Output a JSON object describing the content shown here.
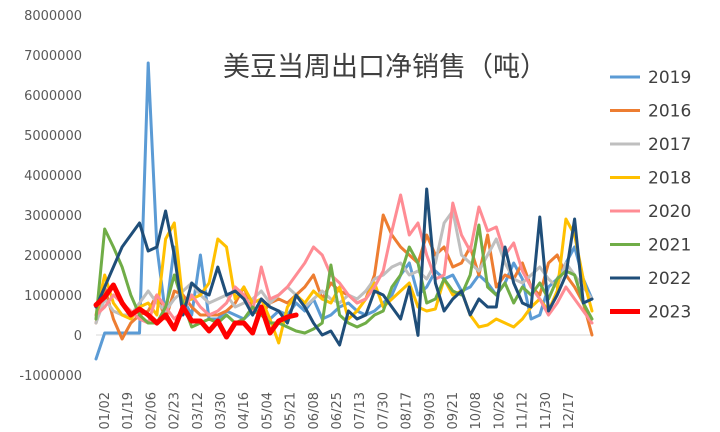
{
  "chart_data": {
    "type": "line",
    "title": "美豆当周出口净销售（吨）",
    "xlabel": "",
    "ylabel": "",
    "ylim": [
      -1000000,
      8000000
    ],
    "y_ticks": [
      "8000000",
      "7000000",
      "6000000",
      "5000000",
      "4000000",
      "3000000",
      "2000000",
      "1000000",
      "0",
      "-1000000"
    ],
    "x_tick_labels": [
      "01/02",
      "01/19",
      "02/06",
      "02/23",
      "03/12",
      "03/30",
      "04/16",
      "05/04",
      "05/21",
      "06/08",
      "06/25",
      "07/13",
      "07/30",
      "08/17",
      "09/03",
      "09/21",
      "10/08",
      "10/26",
      "11/12",
      "11/30",
      "12/17"
    ],
    "grid": false,
    "legend_position": "right",
    "series": [
      {
        "name": "2019",
        "color": "#5B9BD5",
        "width": 3,
        "values": [
          -600000,
          50000,
          50000,
          50000,
          50000,
          50000,
          6800000,
          2200000,
          500000,
          2200000,
          900000,
          500000,
          2000000,
          400000,
          400000,
          600000,
          500000,
          400000,
          600000,
          500000,
          400000,
          600000,
          500000,
          800000,
          600000,
          900000,
          400000,
          500000,
          700000,
          800000,
          600000,
          500000,
          600000,
          800000,
          1000000,
          1500000,
          1800000,
          1000000,
          1200000,
          1600000,
          1400000,
          1500000,
          1100000,
          1200000,
          1500000,
          1300000,
          1000000,
          1300000,
          1800000,
          1400000,
          400000,
          500000,
          1200000,
          1400000,
          1800000,
          2200000,
          1400000,
          900000
        ]
      },
      {
        "name": "2016",
        "color": "#ED7D31",
        "width": 3,
        "values": [
          300000,
          1200000,
          400000,
          -100000,
          300000,
          500000,
          600000,
          1000000,
          400000,
          1100000,
          1000000,
          700000,
          500000,
          500000,
          500000,
          600000,
          800000,
          1200000,
          600000,
          500000,
          800000,
          900000,
          800000,
          1000000,
          1200000,
          1500000,
          900000,
          1300000,
          1100000,
          1000000,
          800000,
          900000,
          1500000,
          3000000,
          2500000,
          2200000,
          2000000,
          1800000,
          2500000,
          2000000,
          2200000,
          1700000,
          1800000,
          2200000,
          1500000,
          2500000,
          1200000,
          1500000,
          1400000,
          1800000,
          1200000,
          1000000,
          1800000,
          2000000,
          1500000,
          1200000,
          800000,
          0
        ]
      },
      {
        "name": "2017",
        "color": "#BFBFBF",
        "width": 3,
        "values": [
          300000,
          900000,
          600000,
          500000,
          500000,
          800000,
          1100000,
          800000,
          600000,
          900000,
          1100000,
          1300000,
          1000000,
          800000,
          900000,
          1000000,
          700000,
          800000,
          900000,
          1100000,
          800000,
          1000000,
          1200000,
          1000000,
          700000,
          900000,
          1100000,
          900000,
          800000,
          1000000,
          900000,
          1100000,
          1400000,
          1500000,
          1700000,
          1800000,
          1500000,
          1600000,
          1400000,
          1800000,
          2800000,
          3100000,
          2000000,
          1800000,
          1600000,
          2000000,
          2400000,
          1800000,
          1400000,
          1300000,
          1500000,
          1700000,
          1400000,
          1200000,
          1800000,
          1500000,
          1200000,
          900000
        ]
      },
      {
        "name": "2018",
        "color": "#FFC000",
        "width": 3,
        "values": [
          500000,
          1500000,
          800000,
          500000,
          400000,
          700000,
          800000,
          500000,
          2400000,
          2800000,
          800000,
          900000,
          1000000,
          1300000,
          2400000,
          2200000,
          900000,
          1200000,
          800000,
          900000,
          400000,
          -200000,
          700000,
          1000000,
          800000,
          1100000,
          900000,
          800000,
          1200000,
          400000,
          600000,
          900000,
          1300000,
          700000,
          900000,
          1100000,
          1300000,
          700000,
          600000,
          650000,
          1400000,
          1000000,
          1100000,
          500000,
          200000,
          250000,
          400000,
          300000,
          200000,
          400000,
          700000,
          900000,
          600000,
          1100000,
          2900000,
          2500000,
          1400000,
          600000
        ]
      },
      {
        "name": "2020",
        "color": "#FF8C94",
        "width": 3,
        "values": [
          500000,
          700000,
          1000000,
          800000,
          600000,
          400000,
          300000,
          1000000,
          700000,
          400000,
          600000,
          1000000,
          700000,
          500000,
          600000,
          800000,
          1200000,
          1000000,
          600000,
          1700000,
          900000,
          1000000,
          1200000,
          1500000,
          1800000,
          2200000,
          2000000,
          1500000,
          1300000,
          1000000,
          800000,
          900000,
          1200000,
          1600000,
          2600000,
          3500000,
          2500000,
          2800000,
          2000000,
          1400000,
          1500000,
          3300000,
          2500000,
          2100000,
          3200000,
          2600000,
          2700000,
          2000000,
          2300000,
          1600000,
          1200000,
          900000,
          500000,
          800000,
          1200000,
          900000,
          600000,
          300000
        ]
      },
      {
        "name": "2021",
        "color": "#70AD47",
        "width": 3,
        "values": [
          400000,
          2650000,
          2200000,
          1700000,
          1000000,
          500000,
          300000,
          300000,
          700000,
          1500000,
          800000,
          200000,
          300000,
          400000,
          300000,
          500000,
          300000,
          400000,
          700000,
          500000,
          300000,
          300000,
          200000,
          100000,
          50000,
          150000,
          300000,
          1750000,
          500000,
          300000,
          200000,
          300000,
          500000,
          600000,
          1200000,
          1500000,
          2200000,
          1800000,
          800000,
          900000,
          1400000,
          1100000,
          1000000,
          1500000,
          2750000,
          1200000,
          1000000,
          1300000,
          800000,
          1200000,
          1000000,
          1300000,
          900000,
          1400000,
          1600000,
          1500000,
          800000,
          400000
        ]
      },
      {
        "name": "2022",
        "color": "#1F4E79",
        "width": 3,
        "values": [
          700000,
          1200000,
          1700000,
          2200000,
          2500000,
          2800000,
          2100000,
          2200000,
          3100000,
          2000000,
          500000,
          1300000,
          1100000,
          1000000,
          1700000,
          1000000,
          1100000,
          900000,
          500000,
          900000,
          700000,
          600000,
          300000,
          1000000,
          700000,
          300000,
          0,
          100000,
          -250000,
          600000,
          400000,
          500000,
          1100000,
          1000000,
          700000,
          400000,
          1200000,
          -10000,
          3650000,
          1300000,
          600000,
          900000,
          1100000,
          500000,
          900000,
          700000,
          700000,
          2200000,
          1300000,
          800000,
          700000,
          2950000,
          600000,
          1000000,
          1500000,
          2900000,
          800000,
          900000
        ]
      },
      {
        "name": "2023",
        "color": "#FF0000",
        "width": 5,
        "values": [
          750000,
          950000,
          1250000,
          800000,
          500000,
          650000,
          500000,
          300000,
          500000,
          150000,
          700000,
          350000,
          350000,
          100000,
          350000,
          -50000,
          300000,
          300000,
          50000,
          700000,
          50000,
          350000,
          450000,
          500000
        ]
      }
    ]
  }
}
